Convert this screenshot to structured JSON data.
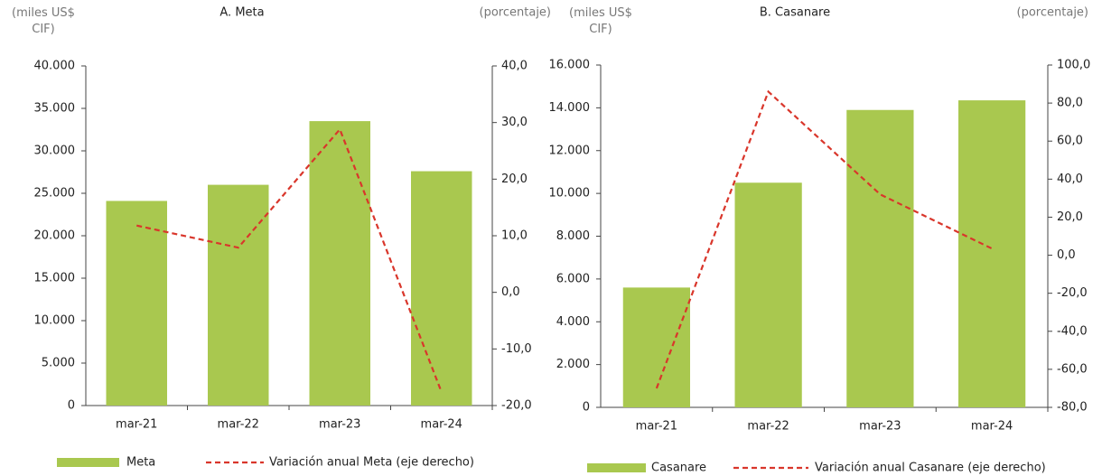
{
  "chart_data": [
    {
      "type": "bar",
      "title": "A. Meta",
      "y_label": "(miles US$ CIF)",
      "y2_label": "(porcentaje)",
      "categories": [
        "mar-21",
        "mar-22",
        "mar-23",
        "mar-24"
      ],
      "series": [
        {
          "name": "Meta",
          "type": "bar",
          "color": "#a9c84f",
          "values": [
            24100,
            26000,
            33500,
            27600
          ]
        },
        {
          "name": "Variación anual Meta (eje derecho)",
          "type": "line",
          "axis": "y2",
          "color": "#d9362b",
          "line_style": "dashed",
          "values": [
            11.8,
            7.9,
            28.8,
            -17.6
          ]
        }
      ],
      "ylim": [
        0,
        40000
      ],
      "yticks": [
        0,
        {
          "value": 5000,
          "label": "5.000"
        },
        {
          "value": 10000,
          "label": "10.000"
        },
        {
          "value": 15000,
          "label": "15.000"
        },
        {
          "value": 20000,
          "label": "20.000"
        },
        {
          "value": 25000,
          "label": "25.000"
        },
        {
          "value": 30000,
          "label": "30.000"
        },
        {
          "value": 35000,
          "label": "35.000"
        },
        {
          "value": 40000,
          "label": "40.000"
        }
      ],
      "y2lim": [
        -20,
        40
      ],
      "y2ticks": [
        {
          "value": -20,
          "label": "-20,0"
        },
        {
          "value": -10,
          "label": "-10,0"
        },
        {
          "value": 0,
          "label": "0,0"
        },
        {
          "value": 10,
          "label": "10,0"
        },
        {
          "value": 20,
          "label": "20,0"
        },
        {
          "value": 30,
          "label": "30,0"
        },
        {
          "value": 40,
          "label": "40,0"
        }
      ]
    },
    {
      "type": "bar",
      "title": "B. Casanare",
      "y_label": "(miles US$ CIF)",
      "y2_label": "(porcentaje)",
      "categories": [
        "mar-21",
        "mar-22",
        "mar-23",
        "mar-24"
      ],
      "series": [
        {
          "name": "Casanare",
          "type": "bar",
          "color": "#a9c84f",
          "values": [
            5600,
            10500,
            13900,
            14350
          ]
        },
        {
          "name": "Variación anual Casanare (eje derecho)",
          "type": "line",
          "axis": "y2",
          "color": "#d9362b",
          "line_style": "dashed",
          "values": [
            -70,
            86,
            32,
            3.5
          ]
        }
      ],
      "ylim": [
        0,
        16000
      ],
      "yticks": [
        0,
        {
          "value": 2000,
          "label": "2.000"
        },
        {
          "value": 4000,
          "label": "4.000"
        },
        {
          "value": 6000,
          "label": "6.000"
        },
        {
          "value": 8000,
          "label": "8.000"
        },
        {
          "value": 10000,
          "label": "10.000"
        },
        {
          "value": 12000,
          "label": "12.000"
        },
        {
          "value": 14000,
          "label": "14.000"
        },
        {
          "value": 16000,
          "label": "16.000"
        }
      ],
      "y2lim": [
        -80,
        100
      ],
      "y2ticks": [
        {
          "value": -80,
          "label": "-80,0"
        },
        {
          "value": -60,
          "label": "-60,0"
        },
        {
          "value": -40,
          "label": "-40,0"
        },
        {
          "value": -20,
          "label": "-20,0"
        },
        {
          "value": 0,
          "label": "0,0"
        },
        {
          "value": 20,
          "label": "20,0"
        },
        {
          "value": 40,
          "label": "40,0"
        },
        {
          "value": 60,
          "label": "60,0"
        },
        {
          "value": 80,
          "label": "80,0"
        },
        {
          "value": 100,
          "label": "100,0"
        }
      ]
    }
  ]
}
